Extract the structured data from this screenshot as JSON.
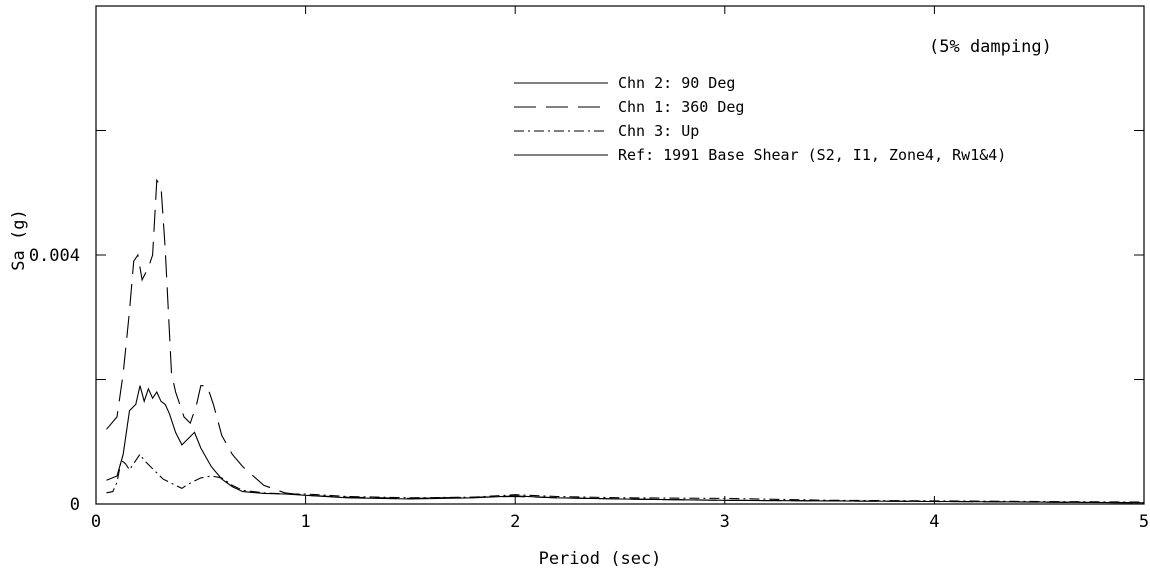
{
  "chart_data": {
    "type": "line",
    "title": "",
    "annotation": "(5% damping)",
    "xlabel": "Period (sec)",
    "ylabel": "Sa (g)",
    "xlim": [
      0,
      5
    ],
    "ylim": [
      0,
      0.008
    ],
    "x_ticks": [
      {
        "value": 0,
        "label": "0"
      },
      {
        "value": 1,
        "label": "1"
      },
      {
        "value": 2,
        "label": "2"
      },
      {
        "value": 3,
        "label": "3"
      },
      {
        "value": 4,
        "label": "4"
      },
      {
        "value": 5,
        "label": "5"
      }
    ],
    "y_ticks": [
      {
        "value": 0,
        "label": "0"
      },
      {
        "value": 0.002,
        "label": ""
      },
      {
        "value": 0.004,
        "label": "0.004"
      },
      {
        "value": 0.006,
        "label": ""
      }
    ],
    "grid": false,
    "legend_placement": "top-right",
    "series": [
      {
        "name": "Chn 2: 90 Deg",
        "style": "solid",
        "points": [
          [
            0.05,
            0.00038
          ],
          [
            0.1,
            0.00045
          ],
          [
            0.13,
            0.0008
          ],
          [
            0.16,
            0.0015
          ],
          [
            0.19,
            0.0016
          ],
          [
            0.21,
            0.0019
          ],
          [
            0.23,
            0.00165
          ],
          [
            0.25,
            0.00185
          ],
          [
            0.27,
            0.0017
          ],
          [
            0.29,
            0.0018
          ],
          [
            0.31,
            0.00165
          ],
          [
            0.33,
            0.0016
          ],
          [
            0.35,
            0.00145
          ],
          [
            0.38,
            0.00115
          ],
          [
            0.41,
            0.00095
          ],
          [
            0.44,
            0.00105
          ],
          [
            0.47,
            0.00115
          ],
          [
            0.5,
            0.0009
          ],
          [
            0.55,
            0.0006
          ],
          [
            0.6,
            0.0004
          ],
          [
            0.65,
            0.00028
          ],
          [
            0.7,
            0.0002
          ],
          [
            0.8,
            0.00017
          ],
          [
            0.9,
            0.00016
          ],
          [
            1.0,
            0.00014
          ],
          [
            1.2,
            0.0001
          ],
          [
            1.5,
            8e-05
          ],
          [
            1.8,
            0.0001
          ],
          [
            2.0,
            0.00013
          ],
          [
            2.2,
            0.0001
          ],
          [
            2.5,
            8e-05
          ],
          [
            3.0,
            6e-05
          ],
          [
            3.5,
            5e-05
          ],
          [
            4.0,
            4e-05
          ],
          [
            4.5,
            3e-05
          ],
          [
            5.0,
            2e-05
          ]
        ]
      },
      {
        "name": "Chn 1: 360 Deg",
        "style": "dashed",
        "points": [
          [
            0.05,
            0.0012
          ],
          [
            0.1,
            0.0014
          ],
          [
            0.13,
            0.0021
          ],
          [
            0.16,
            0.0031
          ],
          [
            0.18,
            0.0039
          ],
          [
            0.2,
            0.004
          ],
          [
            0.22,
            0.0036
          ],
          [
            0.25,
            0.0038
          ],
          [
            0.27,
            0.004
          ],
          [
            0.29,
            0.0052
          ],
          [
            0.31,
            0.0051
          ],
          [
            0.33,
            0.0041
          ],
          [
            0.36,
            0.0021
          ],
          [
            0.38,
            0.0018
          ],
          [
            0.4,
            0.0016
          ],
          [
            0.42,
            0.0014
          ],
          [
            0.45,
            0.0013
          ],
          [
            0.48,
            0.0016
          ],
          [
            0.5,
            0.0019
          ],
          [
            0.53,
            0.0019
          ],
          [
            0.56,
            0.0016
          ],
          [
            0.6,
            0.0011
          ],
          [
            0.65,
            0.0008
          ],
          [
            0.7,
            0.0006
          ],
          [
            0.8,
            0.0003
          ],
          [
            0.9,
            0.00018
          ],
          [
            1.0,
            0.00014
          ],
          [
            1.2,
            0.00011
          ],
          [
            1.5,
            9e-05
          ],
          [
            1.8,
            0.00011
          ],
          [
            2.0,
            0.00012
          ],
          [
            2.2,
            0.0001
          ],
          [
            2.5,
            8e-05
          ],
          [
            3.0,
            6e-05
          ],
          [
            3.5,
            5e-05
          ],
          [
            4.0,
            4e-05
          ],
          [
            4.5,
            3e-05
          ],
          [
            5.0,
            2e-05
          ]
        ]
      },
      {
        "name": "Chn 3: Up",
        "style": "dashdot",
        "points": [
          [
            0.05,
            0.00018
          ],
          [
            0.08,
            0.0002
          ],
          [
            0.1,
            0.00035
          ],
          [
            0.12,
            0.0007
          ],
          [
            0.14,
            0.00065
          ],
          [
            0.16,
            0.00055
          ],
          [
            0.19,
            0.0007
          ],
          [
            0.21,
            0.0008
          ],
          [
            0.23,
            0.0007
          ],
          [
            0.26,
            0.0006
          ],
          [
            0.29,
            0.0005
          ],
          [
            0.32,
            0.0004
          ],
          [
            0.35,
            0.00035
          ],
          [
            0.38,
            0.0003
          ],
          [
            0.41,
            0.00025
          ],
          [
            0.44,
            0.00032
          ],
          [
            0.5,
            0.00042
          ],
          [
            0.55,
            0.00045
          ],
          [
            0.6,
            0.00042
          ],
          [
            0.65,
            0.0003
          ],
          [
            0.7,
            0.00022
          ],
          [
            0.8,
            0.00018
          ],
          [
            0.9,
            0.00016
          ],
          [
            1.0,
            0.00016
          ],
          [
            1.2,
            0.00012
          ],
          [
            1.5,
            0.0001
          ],
          [
            1.8,
            0.00011
          ],
          [
            2.0,
            0.00015
          ],
          [
            2.2,
            0.00012
          ],
          [
            2.5,
            0.0001
          ],
          [
            3.0,
            9e-05
          ],
          [
            3.5,
            6e-05
          ],
          [
            4.0,
            5e-05
          ],
          [
            4.5,
            4e-05
          ],
          [
            5.0,
            3e-05
          ]
        ]
      },
      {
        "name": "Ref: 1991 Base Shear (S2, I1, Zone4, Rw1&4)",
        "style": "solid",
        "points": []
      }
    ]
  }
}
